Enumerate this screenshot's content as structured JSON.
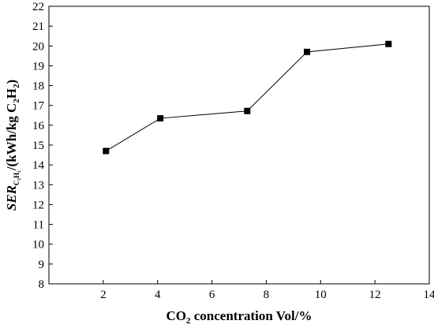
{
  "chart_data": {
    "type": "line",
    "title": "",
    "xlabel": {
      "prefix": "CO",
      "sub": "2",
      "suffix": " concentration Vol/%"
    },
    "ylabel": {
      "symbol": "SER",
      "symbol_sub": "C₂H₂",
      "rest": "/(kWh/kg C",
      "sub1": "2",
      "mid": "H",
      "sub2": "2",
      "end": ")"
    },
    "xlim": [
      0,
      14
    ],
    "ylim": [
      8,
      22
    ],
    "xticks": [
      2,
      4,
      6,
      8,
      10,
      12,
      14
    ],
    "yticks": [
      8,
      9,
      10,
      11,
      12,
      13,
      14,
      15,
      16,
      17,
      18,
      19,
      20,
      21,
      22
    ],
    "series": [
      {
        "marker": "square",
        "color": "#000000",
        "x": [
          2.1,
          4.1,
          7.3,
          9.5,
          12.5
        ],
        "y": [
          14.7,
          16.35,
          16.72,
          19.7,
          20.1
        ]
      }
    ],
    "grid": false,
    "legend": false
  }
}
